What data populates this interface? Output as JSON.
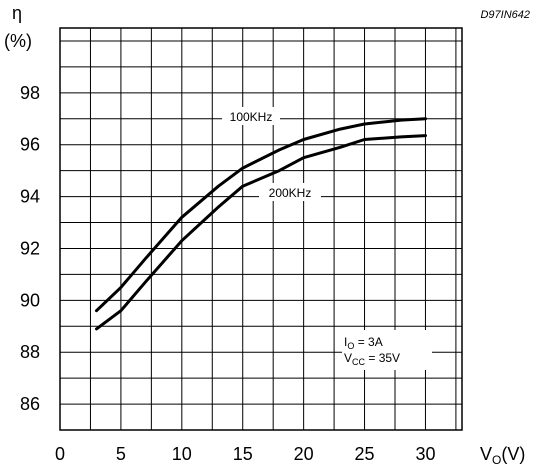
{
  "chart_data": {
    "type": "line",
    "code_label": "D97IN642",
    "ylabel_symbol": "η",
    "ylabel_unit": "(%)",
    "xlabel_main": "V",
    "xlabel_sub": "O",
    "xlabel_unit": "(V)",
    "xlim": [
      0,
      33
    ],
    "ylim": [
      85,
      100.5
    ],
    "x_tick_labels": [
      "0",
      "5",
      "10",
      "15",
      "20",
      "25",
      "30"
    ],
    "y_tick_labels": [
      "86",
      "88",
      "90",
      "92",
      "94",
      "96",
      "98"
    ],
    "grid": true,
    "series": [
      {
        "name": "100KHz",
        "x": [
          3,
          5,
          7,
          10,
          13,
          15,
          18,
          20,
          23,
          25,
          28,
          30
        ],
        "y": [
          89.6,
          90.5,
          91.6,
          93.2,
          94.4,
          95.1,
          95.8,
          96.2,
          96.6,
          96.8,
          96.95,
          97.0
        ]
      },
      {
        "name": "200KHz",
        "x": [
          3,
          5,
          7,
          10,
          13,
          15,
          18,
          20,
          23,
          25,
          28,
          30
        ],
        "y": [
          88.9,
          89.6,
          90.7,
          92.3,
          93.6,
          94.4,
          95.0,
          95.5,
          95.9,
          96.2,
          96.3,
          96.35
        ]
      }
    ],
    "annotation": {
      "io_symbol": "I",
      "io_sub": "O",
      "io_value": " = 3A",
      "vcc_symbol": "V",
      "vcc_sub": "CC",
      "vcc_value": " = 35V"
    }
  }
}
